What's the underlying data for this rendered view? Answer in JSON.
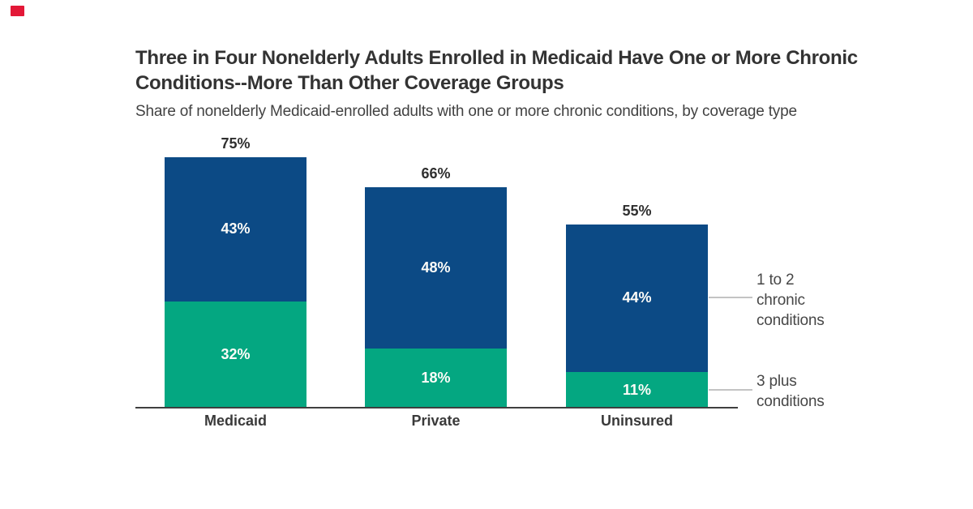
{
  "logo": {
    "name": "kff-logo-mark",
    "color": "#e31837"
  },
  "header": {
    "title_lines": [
      "Three in Four Nonelderly Adults Enrolled in Medicaid Have One or More Chronic",
      "Conditions--More Than Other Coverage Groups"
    ],
    "subtitle": "Share of nonelderly Medicaid-enrolled adults with one or more chronic conditions, by coverage type"
  },
  "chart_data": {
    "type": "bar",
    "subtype": "stacked",
    "categories": [
      "Medicaid",
      "Private",
      "Uninsured"
    ],
    "series": [
      {
        "name": "3 plus conditions",
        "color": "#04a781",
        "values": [
          32,
          18,
          11
        ],
        "labels": [
          "32%",
          "18%",
          "11%"
        ]
      },
      {
        "name": "1 to 2 chronic conditions",
        "color": "#0c4a85",
        "values": [
          43,
          48,
          44
        ],
        "labels": [
          "43%",
          "48%",
          "44%"
        ]
      }
    ],
    "totals": {
      "values": [
        75,
        66,
        55
      ],
      "labels": [
        "75%",
        "66%",
        "55%"
      ]
    },
    "ylim": [
      0,
      75
    ],
    "grid": false,
    "legend_position": "right",
    "legend": [
      {
        "lines": [
          "1 to 2",
          "chronic",
          "conditions"
        ]
      },
      {
        "lines": [
          "3 plus",
          "conditions"
        ]
      }
    ],
    "colors": {
      "axis": "#3f3f3f",
      "total_label": "#2f2f2f",
      "segment_label": "#fdfcf8",
      "category_label": "#3a3a3a",
      "connector": "#c3c3c3"
    }
  }
}
